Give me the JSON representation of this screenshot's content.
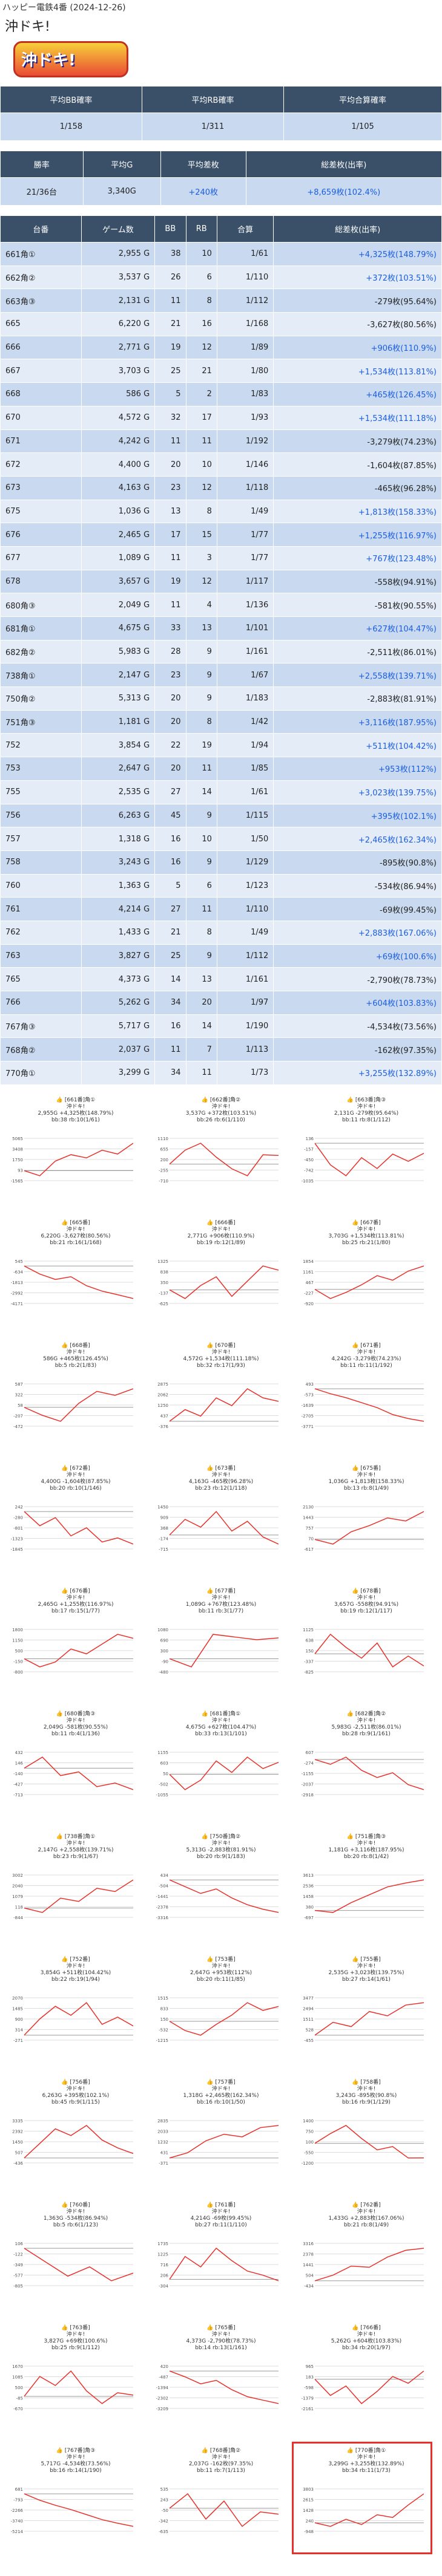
{
  "header": {
    "store": "ハッピー電鉄4番 (2024-12-26)",
    "machine": "沖ドキ!",
    "logo_text": "沖ドキ!"
  },
  "summary": {
    "headers": [
      "平均BB確率",
      "平均RB確率",
      "平均合算確率"
    ],
    "values": [
      "1/158",
      "1/311",
      "1/105"
    ]
  },
  "summary2": {
    "headers": [
      "勝率",
      "平均G",
      "平均差枚",
      "総差枚(出率)"
    ],
    "values": [
      "21/36台",
      "3,340G",
      "+240枚",
      "+8,659枚(102.4%)"
    ]
  },
  "table": {
    "headers": [
      "台番",
      "ゲーム数",
      "BB",
      "RB",
      "合算",
      "総差枚(出率)"
    ],
    "rows": [
      [
        "661角①",
        "2,955 G",
        "38",
        "10",
        "1/61",
        "+4,325枚(148.79%)"
      ],
      [
        "662角②",
        "3,537 G",
        "26",
        "6",
        "1/110",
        "+372枚(103.51%)"
      ],
      [
        "663角③",
        "2,131 G",
        "11",
        "8",
        "1/112",
        "-279枚(95.64%)"
      ],
      [
        "665",
        "6,220 G",
        "21",
        "16",
        "1/168",
        "-3,627枚(80.56%)"
      ],
      [
        "666",
        "2,771 G",
        "19",
        "12",
        "1/89",
        "+906枚(110.9%)"
      ],
      [
        "667",
        "3,703 G",
        "25",
        "21",
        "1/80",
        "+1,534枚(113.81%)"
      ],
      [
        "668",
        "586 G",
        "5",
        "2",
        "1/83",
        "+465枚(126.45%)"
      ],
      [
        "670",
        "4,572 G",
        "32",
        "17",
        "1/93",
        "+1,534枚(111.18%)"
      ],
      [
        "671",
        "4,242 G",
        "11",
        "11",
        "1/192",
        "-3,279枚(74.23%)"
      ],
      [
        "672",
        "4,400 G",
        "20",
        "10",
        "1/146",
        "-1,604枚(87.85%)"
      ],
      [
        "673",
        "4,163 G",
        "23",
        "12",
        "1/118",
        "-465枚(96.28%)"
      ],
      [
        "675",
        "1,036 G",
        "13",
        "8",
        "1/49",
        "+1,813枚(158.33%)"
      ],
      [
        "676",
        "2,465 G",
        "17",
        "15",
        "1/77",
        "+1,255枚(116.97%)"
      ],
      [
        "677",
        "1,089 G",
        "11",
        "3",
        "1/77",
        "+767枚(123.48%)"
      ],
      [
        "678",
        "3,657 G",
        "19",
        "12",
        "1/117",
        "-558枚(94.91%)"
      ],
      [
        "680角③",
        "2,049 G",
        "11",
        "4",
        "1/136",
        "-581枚(90.55%)"
      ],
      [
        "681角①",
        "4,675 G",
        "33",
        "13",
        "1/101",
        "+627枚(104.47%)"
      ],
      [
        "682角②",
        "5,983 G",
        "28",
        "9",
        "1/161",
        "-2,511枚(86.01%)"
      ],
      [
        "738角①",
        "2,147 G",
        "23",
        "9",
        "1/67",
        "+2,558枚(139.71%)"
      ],
      [
        "750角②",
        "5,313 G",
        "20",
        "9",
        "1/183",
        "-2,883枚(81.91%)"
      ],
      [
        "751角③",
        "1,181 G",
        "20",
        "8",
        "1/42",
        "+3,116枚(187.95%)"
      ],
      [
        "752",
        "3,854 G",
        "22",
        "19",
        "1/94",
        "+511枚(104.42%)"
      ],
      [
        "753",
        "2,647 G",
        "20",
        "11",
        "1/85",
        "+953枚(112%)"
      ],
      [
        "755",
        "2,535 G",
        "27",
        "14",
        "1/61",
        "+3,023枚(139.75%)"
      ],
      [
        "756",
        "6,263 G",
        "45",
        "9",
        "1/115",
        "+395枚(102.1%)"
      ],
      [
        "757",
        "1,318 G",
        "16",
        "10",
        "1/50",
        "+2,465枚(162.34%)"
      ],
      [
        "758",
        "3,243 G",
        "16",
        "9",
        "1/129",
        "-895枚(90.8%)"
      ],
      [
        "760",
        "1,363 G",
        "5",
        "6",
        "1/123",
        "-534枚(86.94%)"
      ],
      [
        "761",
        "4,214 G",
        "27",
        "11",
        "1/110",
        "-69枚(99.45%)"
      ],
      [
        "762",
        "1,433 G",
        "21",
        "8",
        "1/49",
        "+2,883枚(167.06%)"
      ],
      [
        "763",
        "3,827 G",
        "25",
        "9",
        "1/112",
        "+69枚(100.6%)"
      ],
      [
        "765",
        "4,373 G",
        "14",
        "13",
        "1/161",
        "-2,790枚(78.73%)"
      ],
      [
        "766",
        "5,262 G",
        "34",
        "20",
        "1/97",
        "+604枚(103.83%)"
      ],
      [
        "767角③",
        "5,717 G",
        "16",
        "14",
        "1/190",
        "-4,534枚(73.56%)"
      ],
      [
        "768角②",
        "2,037 G",
        "11",
        "7",
        "1/113",
        "-162枚(97.35%)"
      ],
      [
        "770角①",
        "3,299 G",
        "34",
        "11",
        "1/73",
        "+3,255枚(132.89%)"
      ]
    ]
  },
  "charts": [
    {
      "title": "[661番]角①",
      "l1": "沖ドキ!",
      "l2": "2,955G +4,325枚(148.79%)",
      "l3": "bb:38 rb:10(1/61)",
      "trend": [
        0,
        -800,
        1500,
        2500,
        2000,
        3200,
        2600,
        4300
      ]
    },
    {
      "title": "[662番]角②",
      "l1": "沖ドキ!",
      "l2": "3,537G +372枚(103.51%)",
      "l3": "bb:26 rb:6(1/110)",
      "trend": [
        0,
        600,
        900,
        300,
        -200,
        -500,
        400,
        372
      ]
    },
    {
      "title": "[663番]角③",
      "l1": "沖ドキ!",
      "l2": "2,131G -279枚(95.64%)",
      "l3": "bb:11 rb:8(1/112)",
      "trend": [
        0,
        -600,
        -900,
        -400,
        -700,
        -300,
        -500,
        -279
      ]
    },
    {
      "title": "[665番]",
      "l1": "沖ドキ!",
      "l2": "6,220G -3,627枚(80.56%)",
      "l3": "bb:21 rb:16(1/168)",
      "trend": [
        0,
        -900,
        -1500,
        -1200,
        -2200,
        -2800,
        -3200,
        -3627
      ]
    },
    {
      "title": "[666番]",
      "l1": "沖ドキ!",
      "l2": "2,771G +906枚(110.9%)",
      "l3": "bb:19 rb:12(1/89)",
      "trend": [
        0,
        -400,
        200,
        600,
        -300,
        400,
        1100,
        906
      ]
    },
    {
      "title": "[667番]",
      "l1": "沖ドキ!",
      "l2": "3,703G +1,534枚(113.81%)",
      "l3": "bb:25 rb:21(1/80)",
      "trend": [
        0,
        -600,
        -200,
        300,
        900,
        600,
        1200,
        1534
      ]
    },
    {
      "title": "[668番]",
      "l1": "沖ドキ!",
      "l2": "586G +465枚(126.45%)",
      "l3": "bb:5 rb:2(1/83)",
      "trend": [
        0,
        -200,
        -350,
        100,
        400,
        300,
        465
      ]
    },
    {
      "title": "[670番]",
      "l1": "沖ドキ!",
      "l2": "4,572G +1,534枚(111.18%)",
      "l3": "bb:32 rb:17(1/93)",
      "trend": [
        0,
        900,
        400,
        1800,
        1200,
        2500,
        1800,
        1534
      ]
    },
    {
      "title": "[671番]",
      "l1": "沖ドキ!",
      "l2": "4,242G -3,279枚(74.23%)",
      "l3": "bb:11 rb:11(1/192)",
      "trend": [
        0,
        -500,
        -900,
        -1400,
        -1900,
        -2600,
        -3000,
        -3279
      ]
    },
    {
      "title": "[672番]",
      "l1": "沖ドキ!",
      "l2": "4,400G -1,604枚(87.85%)",
      "l3": "bb:20 rb:10(1/146)",
      "trend": [
        0,
        -700,
        -300,
        -1200,
        -800,
        -1500,
        -1300,
        -1604
      ]
    },
    {
      "title": "[673番]",
      "l1": "沖ドキ!",
      "l2": "4,163G -465枚(96.28%)",
      "l3": "bb:23 rb:12(1/118)",
      "trend": [
        0,
        800,
        400,
        1200,
        200,
        700,
        -100,
        -465
      ]
    },
    {
      "title": "[675番]",
      "l1": "沖ドキ!",
      "l2": "1,036G +1,813枚(158.33%)",
      "l3": "bb:13 rb:8(1/49)",
      "trend": [
        0,
        -300,
        500,
        900,
        1400,
        1200,
        1813
      ]
    },
    {
      "title": "[676番]",
      "l1": "沖ドキ!",
      "l2": "2,465G +1,255枚(116.97%)",
      "l3": "bb:17 rb:15(1/77)",
      "trend": [
        0,
        -500,
        -200,
        600,
        300,
        900,
        1500,
        1255
      ]
    },
    {
      "title": "[677番]",
      "l1": "沖ドキ!",
      "l2": "1,089G +767枚(123.48%)",
      "l3": "bb:11 rb:3(1/77)",
      "trend": [
        0,
        -300,
        900,
        800,
        700,
        767
      ]
    },
    {
      "title": "[678番]",
      "l1": "沖ドキ!",
      "l2": "3,657G -558枚(94.91%)",
      "l3": "bb:19 rb:12(1/117)",
      "trend": [
        0,
        900,
        300,
        -200,
        500,
        -600,
        -100,
        -558
      ]
    },
    {
      "title": "[680番]角③",
      "l1": "沖ドキ!",
      "l2": "2,049G -581枚(90.55%)",
      "l3": "bb:11 rb:4(1/136)",
      "trend": [
        0,
        300,
        -200,
        -100,
        -500,
        -400,
        -581
      ]
    },
    {
      "title": "[681番]角①",
      "l1": "沖ドキ!",
      "l2": "4,675G +627枚(104.47%)",
      "l3": "bb:33 rb:13(1/101)",
      "trend": [
        0,
        -800,
        -300,
        700,
        100,
        900,
        300,
        627
      ]
    },
    {
      "title": "[682番]角②",
      "l1": "沖ドキ!",
      "l2": "5,983G -2,511枚(86.01%)",
      "l3": "bb:28 rb:9(1/161)",
      "trend": [
        0,
        -400,
        200,
        -900,
        -1500,
        -1100,
        -2100,
        -2511
      ]
    },
    {
      "title": "[738番]角①",
      "l1": "沖ドキ!",
      "l2": "2,147G +2,558枚(139.71%)",
      "l3": "bb:23 rb:9(1/67)",
      "trend": [
        0,
        -400,
        900,
        600,
        1800,
        1500,
        2558
      ]
    },
    {
      "title": "[750番]角②",
      "l1": "沖ドキ!",
      "l2": "5,313G -2,883枚(81.91%)",
      "l3": "bb:20 rb:9(1/183)",
      "trend": [
        0,
        -600,
        -1200,
        -800,
        -1600,
        -2200,
        -2600,
        -2883
      ]
    },
    {
      "title": "[751番]角③",
      "l1": "沖ドキ!",
      "l2": "1,181G +3,116枚(187.95%)",
      "l3": "bb:20 rb:8(1/42)",
      "trend": [
        0,
        -200,
        800,
        1600,
        2400,
        2800,
        3116
      ]
    },
    {
      "title": "[752番]",
      "l1": "沖ドキ!",
      "l2": "3,854G +511枚(104.42%)",
      "l3": "bb:22 rb:19(1/94)",
      "trend": [
        0,
        900,
        1600,
        1100,
        1800,
        600,
        1000,
        511
      ]
    },
    {
      "title": "[753番]",
      "l1": "沖ドキ!",
      "l2": "2,647G +953枚(112%)",
      "l3": "bb:20 rb:11(1/85)",
      "trend": [
        0,
        -600,
        -900,
        -200,
        400,
        1200,
        700,
        953
      ]
    },
    {
      "title": "[755番]",
      "l1": "沖ドキ!",
      "l2": "2,535G +3,023枚(139.75%)",
      "l3": "bb:27 rb:14(1/61)",
      "trend": [
        0,
        1200,
        800,
        2200,
        1800,
        2800,
        3023
      ]
    },
    {
      "title": "[756番]",
      "l1": "沖ドキ!",
      "l2": "6,263G +395枚(102.1%)",
      "l3": "bb:45 rb:9(1/115)",
      "trend": [
        0,
        1300,
        2600,
        2000,
        2900,
        1600,
        900,
        395
      ]
    },
    {
      "title": "[757番]",
      "l1": "沖ドキ!",
      "l2": "1,318G +2,465枚(162.34%)",
      "l3": "bb:16 rb:10(1/50)",
      "trend": [
        0,
        400,
        1300,
        1800,
        1600,
        2300,
        2465
      ]
    },
    {
      "title": "[758番]",
      "l1": "沖ドキ!",
      "l2": "3,243G -895枚(90.8%)",
      "l3": "bb:16 rb:9(1/129)",
      "trend": [
        0,
        600,
        1100,
        300,
        -400,
        -200,
        -900,
        -895
      ]
    },
    {
      "title": "[760番]",
      "l1": "沖ドキ!",
      "l2": "1,363G -534枚(86.94%)",
      "l3": "bb:5 rb:6(1/123)",
      "trend": [
        0,
        -300,
        -600,
        -400,
        -700,
        -534
      ]
    },
    {
      "title": "[761番]",
      "l1": "沖ドキ!",
      "l2": "4,214G -69枚(99.45%)",
      "l3": "bb:27 rb:11(1/110)",
      "trend": [
        0,
        1100,
        600,
        1500,
        900,
        400,
        200,
        -69
      ]
    },
    {
      "title": "[762番]",
      "l1": "沖ドキ!",
      "l2": "1,433G +2,883枚(167.06%)",
      "l3": "bb:21 rb:8(1/49)",
      "trend": [
        0,
        500,
        1300,
        1200,
        2100,
        2700,
        2883
      ]
    },
    {
      "title": "[763番]",
      "l1": "沖ドキ!",
      "l2": "3,827G +69枚(100.6%)",
      "l3": "bb:25 rb:9(1/112)",
      "trend": [
        0,
        1100,
        600,
        1400,
        300,
        -400,
        200,
        69
      ]
    },
    {
      "title": "[765番]",
      "l1": "沖ドキ!",
      "l2": "4,373G -2,790枚(78.73%)",
      "l3": "bb:14 rb:13(1/161)",
      "trend": [
        0,
        -500,
        -1100,
        -800,
        -1600,
        -2200,
        -2500,
        -2790
      ]
    },
    {
      "title": "[766番]",
      "l1": "沖ドキ!",
      "l2": "5,262G +604枚(103.83%)",
      "l3": "bb:34 rb:20(1/97)",
      "trend": [
        0,
        -1200,
        -500,
        -1800,
        -900,
        200,
        -300,
        604
      ]
    },
    {
      "title": "[767番]角③",
      "l1": "沖ドキ!",
      "l2": "5,717G -4,534枚(73.56%)",
      "l3": "bb:16 rb:14(1/190)",
      "trend": [
        0,
        -900,
        -1600,
        -2200,
        -2900,
        -3600,
        -4100,
        -4534
      ]
    },
    {
      "title": "[768番]角②",
      "l1": "沖ドキ!",
      "l2": "2,037G -162枚(97.35%)",
      "l3": "bb:11 rb:7(1/113)",
      "trend": [
        0,
        400,
        -300,
        200,
        -500,
        -100,
        -162
      ]
    },
    {
      "title": "[770番]角①",
      "l1": "沖ドキ!",
      "l2": "3,299G +3,255枚(132.89%)",
      "l3": "bb:34 rb:11(1/73)",
      "trend": [
        0,
        -400,
        400,
        -200,
        900,
        600,
        2000,
        3255
      ]
    }
  ],
  "colors": {
    "header_bg": "#3a5068",
    "row_odd": "#c9daf0",
    "row_even": "#e4ecf8",
    "plus_text": "#1a5de0",
    "line": "#e8302a",
    "highlight": "#e8302a"
  }
}
